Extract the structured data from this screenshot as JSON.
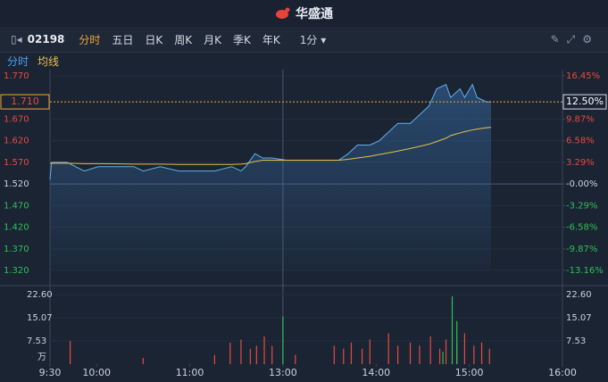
{
  "header": {
    "title": "华盛通"
  },
  "toolbar": {
    "code": "02198",
    "tabs": [
      "分时",
      "五日",
      "日K",
      "周K",
      "月K",
      "季K",
      "年K"
    ],
    "interval": "1分"
  },
  "subbar": {
    "items": [
      "分时",
      "均线"
    ]
  },
  "chart_data": [
    {
      "type": "line",
      "x": [
        0,
        1,
        11,
        22,
        31,
        54,
        60,
        71,
        83,
        106,
        117,
        123,
        126,
        132,
        137,
        143,
        152,
        186,
        192,
        198,
        206,
        212,
        218,
        224,
        232,
        238,
        244,
        249,
        255,
        258,
        264,
        267,
        272,
        275,
        281,
        284
      ],
      "series": [
        {
          "color": "#62aef0",
          "values": [
            1.53,
            1.57,
            1.57,
            1.55,
            1.56,
            1.56,
            1.55,
            1.56,
            1.55,
            1.55,
            1.56,
            1.55,
            1.56,
            1.59,
            1.58,
            1.58,
            1.575,
            1.575,
            1.59,
            1.61,
            1.61,
            1.62,
            1.64,
            1.66,
            1.66,
            1.68,
            1.7,
            1.74,
            1.75,
            1.72,
            1.74,
            1.72,
            1.75,
            1.72,
            1.71,
            1.71
          ]
        },
        {
          "color": "#e6c14b",
          "values": [
            1.568,
            1.568,
            1.568,
            1.567,
            1.567,
            1.566,
            1.566,
            1.566,
            1.565,
            1.565,
            1.565,
            1.566,
            1.567,
            1.572,
            1.575,
            1.575,
            1.575,
            1.575,
            1.577,
            1.58,
            1.584,
            1.588,
            1.592,
            1.596,
            1.602,
            1.607,
            1.612,
            1.618,
            1.626,
            1.632,
            1.638,
            1.641,
            1.645,
            1.647,
            1.65,
            1.651
          ]
        }
      ],
      "xlim": [
        0,
        330
      ],
      "ylim": [
        1.32,
        1.77
      ],
      "yticks": [
        {
          "value": 1.77,
          "label": "1.770"
        },
        {
          "value": 1.67,
          "label": "1.670"
        },
        {
          "value": 1.62,
          "label": "1.620"
        },
        {
          "value": 1.57,
          "label": "1.570"
        },
        {
          "value": 1.52,
          "label": "1.520"
        },
        {
          "value": 1.47,
          "label": "1.470"
        },
        {
          "value": 1.42,
          "label": "1.420"
        },
        {
          "value": 1.37,
          "label": "1.370"
        },
        {
          "value": 1.32,
          "label": "1.320"
        }
      ],
      "y2lim": [
        -13.16,
        16.45
      ],
      "y2ticks": [
        {
          "value": 16.45,
          "label": "16.45%"
        },
        {
          "value": 9.87,
          "label": "9.87%"
        },
        {
          "value": 6.58,
          "label": "6.58%"
        },
        {
          "value": 3.29,
          "label": "3.29%"
        },
        {
          "value": 0,
          "label": "-0.00%"
        },
        {
          "value": -3.29,
          "label": "-3.29%"
        },
        {
          "value": -6.58,
          "label": "-6.58%"
        },
        {
          "value": -9.87,
          "label": "-9.87%"
        },
        {
          "value": -13.16,
          "label": "-13.16%"
        }
      ],
      "reference_price": 1.52,
      "current_price": {
        "value": 1.71,
        "label": "1.710"
      },
      "current_change": {
        "value": 12.5,
        "label": "12.50%"
      }
    },
    {
      "type": "bar",
      "y_unit": "万",
      "series": [
        {
          "color": "#e64a3e",
          "x": [
            13,
            60,
            106,
            116,
            123,
            129,
            133,
            138,
            143,
            158,
            183,
            189,
            194,
            201,
            206,
            218,
            224,
            232,
            238,
            245,
            251,
            255,
            262,
            267,
            273,
            278,
            283
          ],
          "values": [
            7.5,
            2,
            3,
            7,
            8,
            5,
            6,
            9,
            6,
            3,
            6,
            5,
            7,
            5,
            8,
            10,
            6,
            7,
            6,
            9,
            5,
            8,
            7,
            10,
            6,
            7,
            5
          ]
        },
        {
          "color": "#2fbf57",
          "x": [
            150,
            253,
            259,
            262
          ],
          "values": [
            15.5,
            4,
            22,
            14
          ]
        }
      ],
      "xlim": [
        0,
        330
      ],
      "ylim": [
        0,
        22.6
      ],
      "yticks": [
        {
          "value": 22.6,
          "label": "22.60"
        },
        15.07,
        7.53
      ],
      "xticks": [
        {
          "value": 0,
          "label": "9:30"
        },
        {
          "value": 30,
          "label": "10:00"
        },
        {
          "value": 90,
          "label": "11:00"
        },
        {
          "value": 150,
          "label": "13:00"
        },
        {
          "value": 210,
          "label": "14:00"
        },
        {
          "value": 270,
          "label": "15:00"
        },
        {
          "value": 330,
          "label": "16:00"
        }
      ]
    }
  ]
}
